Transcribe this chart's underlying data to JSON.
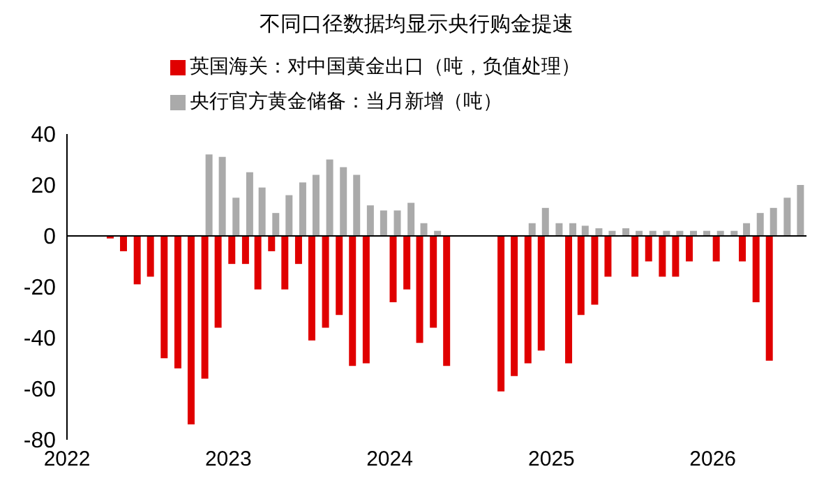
{
  "chart_data": {
    "type": "bar",
    "title": "不同口径数据均显示央行购金提速",
    "x": [
      "2022-04-15",
      "2022-05-15",
      "2022-06-15",
      "2022-07-15",
      "2022-08-15",
      "2022-09-15",
      "2022-10-15",
      "2022-11-15",
      "2022-12-15",
      "2023-01-15",
      "2023-02-15",
      "2023-03-15",
      "2023-04-15",
      "2023-05-15",
      "2023-06-15",
      "2023-07-15",
      "2023-08-15",
      "2023-09-15",
      "2023-10-15",
      "2023-11-15",
      "2023-12-15",
      "2024-01-15",
      "2024-02-15",
      "2024-03-15",
      "2024-04-15",
      "2024-05-15",
      "2024-06-15",
      "2024-07-15",
      "2024-08-15",
      "2024-09-15",
      "2024-10-15",
      "2024-11-15",
      "2024-12-15",
      "2025-01-15",
      "2025-02-15",
      "2025-03-15",
      "2025-04-15",
      "2025-05-15",
      "2025-06-15",
      "2025-07-15",
      "2025-08-15",
      "2025-09-15",
      "2025-10-15",
      "2025-11-15",
      "2025-12-15",
      "2026-01-15",
      "2026-02-15",
      "2026-03-15",
      "2026-04-15",
      "2026-05-15",
      "2026-06-15",
      "2026-07-15"
    ],
    "series": [
      {
        "name": "英国海关：对中国黄金出口（吨，负值处理）",
        "color": "#e00000",
        "values": [
          -1,
          -6,
          -19,
          -16,
          -48,
          -52,
          -74,
          -56,
          -36,
          -11,
          -11,
          -21,
          -6,
          -21,
          -11,
          -41,
          -36,
          -31,
          -51,
          -50,
          null,
          -26,
          -21,
          -42,
          -36,
          -51,
          null,
          null,
          null,
          -61,
          -55,
          -50,
          -45,
          null,
          -50,
          -31,
          -27,
          -16,
          null,
          -16,
          -10,
          -16,
          -16,
          -10,
          null,
          -10,
          null,
          -10,
          -26,
          -49,
          null,
          null
        ]
      },
      {
        "name": "央行官方黄金储备：当月新增（吨）",
        "color": "#aaaaaa",
        "values": [
          null,
          null,
          null,
          null,
          null,
          null,
          null,
          32,
          31,
          15,
          25,
          19,
          9,
          16,
          21,
          24,
          30,
          27,
          24,
          12,
          10,
          10,
          13,
          5,
          2,
          null,
          null,
          null,
          null,
          null,
          null,
          5,
          11,
          5,
          5,
          4,
          3,
          2,
          3,
          2,
          2,
          2,
          2,
          2,
          2,
          2,
          2,
          5,
          9,
          11,
          15,
          20
        ]
      }
    ],
    "xlim": [
      "2022-01-01",
      "2026-08-01"
    ],
    "xticks": [
      {
        "value": "2022-01-01",
        "label": "2022"
      },
      {
        "value": "2023-01-01",
        "label": "2023"
      },
      {
        "value": "2024-01-01",
        "label": "2024"
      },
      {
        "value": "2025-01-01",
        "label": "2025"
      },
      {
        "value": "2026-01-01",
        "label": "2026"
      }
    ],
    "ylim": [
      -80,
      40
    ],
    "yticks": [
      -80,
      -60,
      -40,
      -20,
      0,
      20,
      40
    ],
    "ref_lines": [
      {
        "axis": "y",
        "value": 0,
        "color": "#000000"
      }
    ],
    "legend": "top"
  }
}
